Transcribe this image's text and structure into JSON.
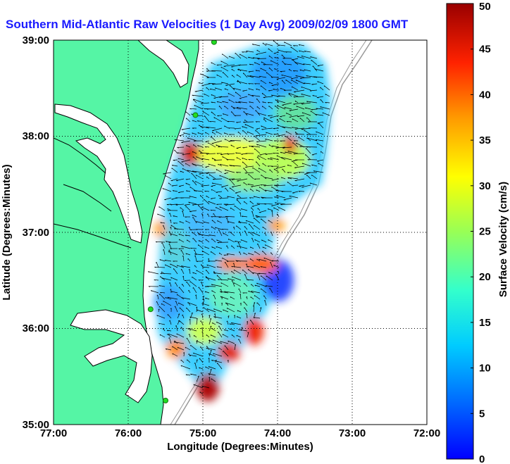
{
  "title": "Southern Mid-Atlantic Raw Velocities (1 Day Avg) 2009/02/09 1800 GMT",
  "map": {
    "xlabel": "Longitude (Degrees:Minutes)",
    "ylabel": "Latitude (Degrees:Minutes)",
    "x_ticks": [
      "77:00",
      "76:00",
      "75:00",
      "74:00",
      "73:00",
      "72:00"
    ],
    "y_ticks": [
      "39:00",
      "38:00",
      "37:00",
      "36:00",
      "35:00"
    ],
    "lon_range": [
      -77,
      -72
    ],
    "lat_range": [
      35,
      39
    ],
    "grid": true,
    "colors": {
      "land": "#55f5a5",
      "water": "#ffffff",
      "coast": "#000000",
      "stations": "#22dd22",
      "arrows": "#000000"
    }
  },
  "colorbar": {
    "label": "Surface Velocity (cm/s)",
    "ticks": [
      "0",
      "5",
      "10",
      "15",
      "20",
      "25",
      "30",
      "35",
      "40",
      "45",
      "50"
    ],
    "range": [
      0,
      50
    ],
    "colormap": "jet"
  },
  "stations": [
    {
      "lon": -74.85,
      "lat": 38.98
    },
    {
      "lon": -75.1,
      "lat": 38.22
    },
    {
      "lon": -75.7,
      "lat": 36.2
    },
    {
      "lon": -75.5,
      "lat": 35.25
    }
  ]
}
